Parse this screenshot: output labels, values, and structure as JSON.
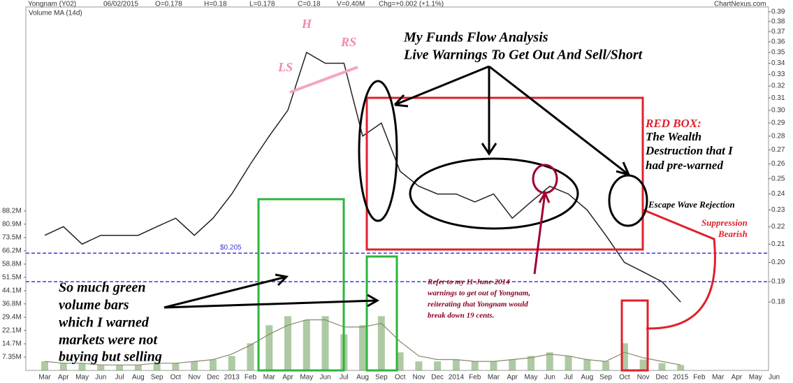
{
  "header": {
    "name": "Yongnam (Y02)",
    "date": "06/02/2015",
    "open": "O=0.178",
    "high": "H=0.18",
    "low": "L=0.178",
    "close": "C=0.18",
    "volume": "V=0.40M",
    "change": "Chg=+0.002 (+1.1%)",
    "source": "ChartNexus.com"
  },
  "chart_data": {
    "type": "line",
    "log_scale": true,
    "grid": false,
    "color": "#222222",
    "volume_color": "#6a9f5a",
    "categories": [
      "Mar",
      "Apr",
      "May",
      "Jun",
      "Jul",
      "Aug",
      "Sep",
      "Oct",
      "Nov",
      "Dec",
      "2013",
      "Feb",
      "Mar",
      "Apr",
      "May",
      "Jun",
      "Jul",
      "Aug",
      "Sep",
      "Oct",
      "Nov",
      "Dec",
      "2014",
      "Feb",
      "Mar",
      "Apr",
      "May",
      "Jun",
      "Jul",
      "Aug",
      "Sep",
      "Oct",
      "Nov",
      "Dec",
      "2015",
      "Feb",
      "Mar",
      "Apr",
      "May",
      "Jun"
    ],
    "values": [
      0.215,
      0.22,
      0.21,
      0.215,
      0.215,
      0.215,
      0.22,
      0.225,
      0.215,
      0.225,
      0.24,
      0.26,
      0.28,
      0.3,
      0.35,
      0.34,
      0.34,
      0.28,
      0.29,
      0.255,
      0.245,
      0.24,
      0.24,
      0.235,
      0.24,
      0.225,
      0.235,
      0.245,
      0.24,
      0.23,
      0.215,
      0.2,
      0.195,
      0.19,
      0.18,
      null,
      null,
      null,
      null,
      null
    ],
    "volume": [
      5000000,
      4000000,
      4000000,
      3000000,
      3000000,
      3000000,
      4000000,
      4000000,
      5000000,
      6000000,
      8000000,
      15000000,
      25000000,
      30000000,
      28000000,
      30000000,
      20000000,
      25000000,
      30000000,
      10000000,
      5000000,
      5000000,
      6000000,
      5000000,
      5000000,
      6000000,
      8000000,
      10000000,
      8000000,
      6000000,
      5000000,
      15000000,
      6000000,
      4000000,
      3000000,
      null,
      null,
      null,
      null,
      null
    ],
    "series": [
      {
        "name": "Volume MA (14d)",
        "axis": "y2",
        "color": "#8a8a6a",
        "values": [
          5000000,
          4000000,
          4000000,
          3000000,
          3000000,
          3000000,
          4000000,
          4000000,
          5000000,
          6000000,
          9000000,
          14000000,
          20000000,
          25000000,
          28000000,
          28000000,
          24000000,
          24000000,
          26000000,
          16000000,
          8000000,
          6000000,
          6000000,
          5000000,
          5000000,
          6000000,
          7000000,
          9000000,
          8000000,
          6000000,
          5000000,
          10000000,
          7000000,
          5000000,
          3000000,
          null,
          null,
          null,
          null,
          null
        ]
      }
    ],
    "ylim": [
      0.15,
      0.395
    ],
    "yticks": [
      {
        "value": 0.18,
        "label": "0.18"
      },
      {
        "value": 0.19,
        "label": "0.19"
      },
      {
        "value": 0.2,
        "label": "0.20"
      },
      0.21,
      0.22,
      0.23,
      0.24,
      0.25,
      0.26,
      0.27,
      0.28,
      0.29,
      {
        "value": 0.3,
        "label": "0.30"
      },
      0.31,
      0.32,
      0.33,
      0.34,
      0.35,
      0.36,
      0.37,
      0.38,
      0.39
    ],
    "y2lim": [
      0,
      201000000
    ],
    "y2ticks": [
      {
        "value": 7350000,
        "label": "7.35M"
      },
      {
        "value": 14700000,
        "label": "14.7M"
      },
      {
        "value": 22100000,
        "label": "22.1M"
      },
      {
        "value": 29400000,
        "label": "29.4M"
      },
      {
        "value": 36800000,
        "label": "36.8M"
      },
      {
        "value": 44100000,
        "label": "44.1M"
      },
      {
        "value": 51500000,
        "label": "51.5M"
      },
      {
        "value": 58800000,
        "label": "58.8M"
      },
      {
        "value": 66200000,
        "label": "66.2M"
      },
      {
        "value": 73500000,
        "label": "73.5M"
      },
      {
        "value": 80900000,
        "label": "80.9M"
      },
      {
        "value": 88200000,
        "label": "88.2M"
      }
    ],
    "ref_lines": [
      {
        "value": 0.205,
        "label": "$0.205",
        "color": "#3a3adf"
      },
      {
        "value": 0.19,
        "color": "#3a3adf"
      }
    ],
    "annotations": [
      "H",
      "LS",
      "RS",
      "My Funds Flow Analysis",
      "Live Warnings To Get Out And Sell/Short",
      "RED BOX:",
      "The Wealth",
      "Destruction that I",
      "had pre-warned",
      "Escape Wave Rejection",
      "Suppression",
      "Bearish",
      "Refer to my 11-June-2014",
      "warnings to get out of Yongnam,",
      "reiterating that Yongnam would",
      "break down 19 cents.",
      "So much green",
      "volume bars",
      "which I warned",
      "markets were not",
      "buying but selling"
    ]
  }
}
